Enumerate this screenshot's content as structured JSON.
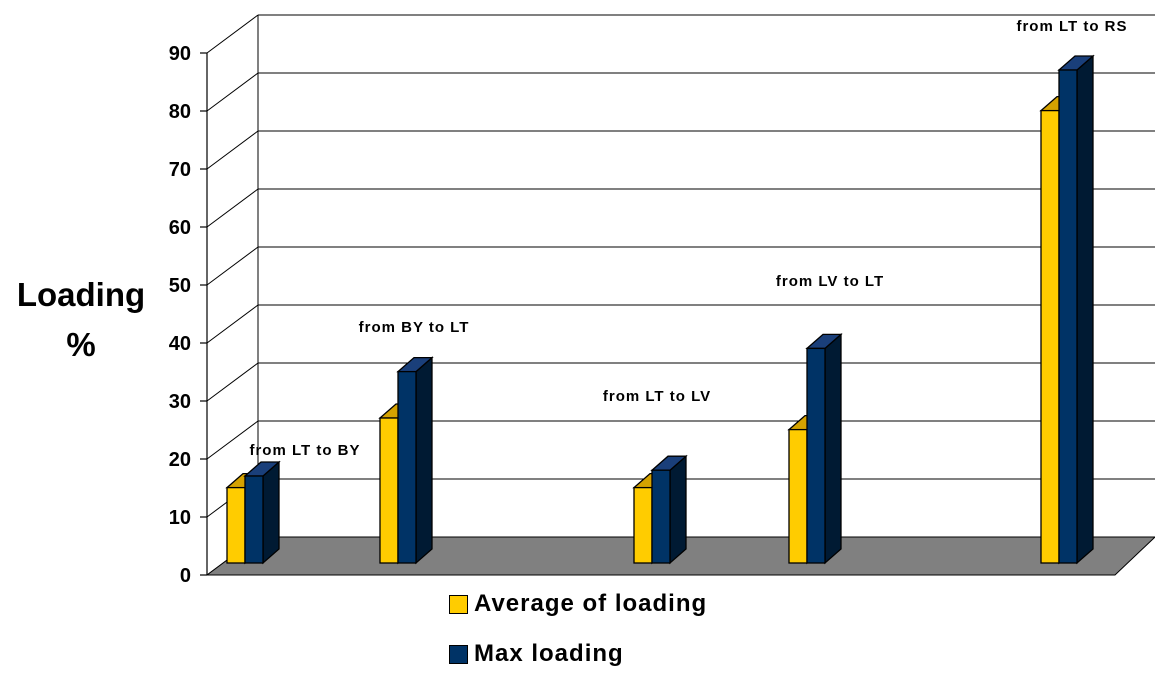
{
  "chart_data": {
    "type": "bar",
    "ylabel": "Loading %",
    "ylim": [
      0,
      90
    ],
    "yticks": [
      0,
      10,
      20,
      30,
      40,
      50,
      60,
      70,
      80,
      90
    ],
    "categories": [
      "from LT to BY",
      "from BY to LT",
      "from LT to LV",
      "from LV to LT",
      "from LT to RS"
    ],
    "series": [
      {
        "name": "Average of loading",
        "values": [
          13,
          25,
          13,
          23,
          78
        ],
        "color": "#ffcc00"
      },
      {
        "name": "Max loading",
        "values": [
          15,
          33,
          16,
          37,
          85
        ],
        "color": "#003366"
      }
    ],
    "grid": true,
    "legend": "bottom-center"
  }
}
